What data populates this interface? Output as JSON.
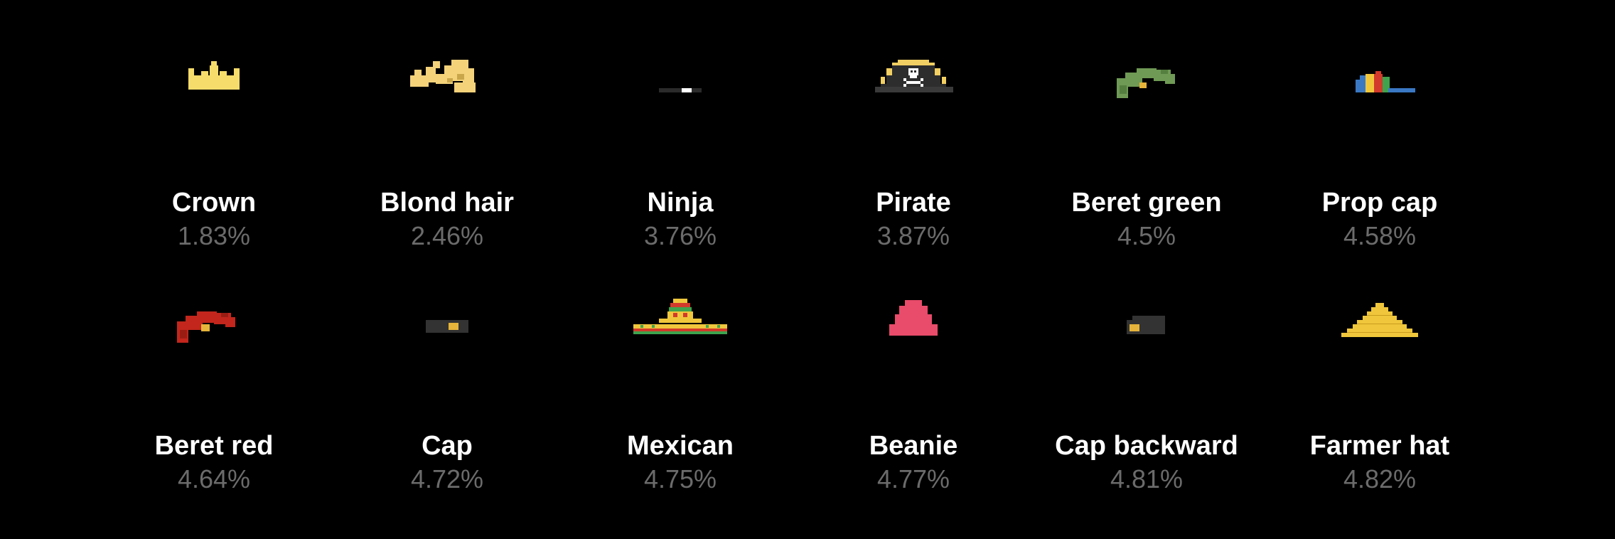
{
  "traits": [
    {
      "name": "Crown",
      "percent": "1.83%",
      "icon": "crown-icon"
    },
    {
      "name": "Blond hair",
      "percent": "2.46%",
      "icon": "blond-hair-icon"
    },
    {
      "name": "Ninja",
      "percent": "3.76%",
      "icon": "ninja-headband-icon"
    },
    {
      "name": "Pirate",
      "percent": "3.87%",
      "icon": "pirate-hat-icon"
    },
    {
      "name": "Beret green",
      "percent": "4.5%",
      "icon": "green-beret-icon"
    },
    {
      "name": "Prop cap",
      "percent": "4.58%",
      "icon": "propeller-cap-icon"
    },
    {
      "name": "Beret red",
      "percent": "4.64%",
      "icon": "red-beret-icon"
    },
    {
      "name": "Cap",
      "percent": "4.72%",
      "icon": "cap-icon"
    },
    {
      "name": "Mexican",
      "percent": "4.75%",
      "icon": "sombrero-icon"
    },
    {
      "name": "Beanie",
      "percent": "4.77%",
      "icon": "beanie-icon"
    },
    {
      "name": "Cap backward",
      "percent": "4.81%",
      "icon": "backward-cap-icon"
    },
    {
      "name": "Farmer hat",
      "percent": "4.82%",
      "icon": "farmer-hat-icon"
    }
  ],
  "colors": {
    "background": "#000000",
    "name_text": "#ffffff",
    "percent_text": "#6b6b6b",
    "crown": "#f6dc6b",
    "blond": "#f3d27a",
    "pirate_gold": "#f2cf62",
    "beret_green": "#6f9a55",
    "beret_red": "#c2261c",
    "beanie": "#e94b6a",
    "farmer": "#f0c73c",
    "cap_dark": "#333333"
  }
}
